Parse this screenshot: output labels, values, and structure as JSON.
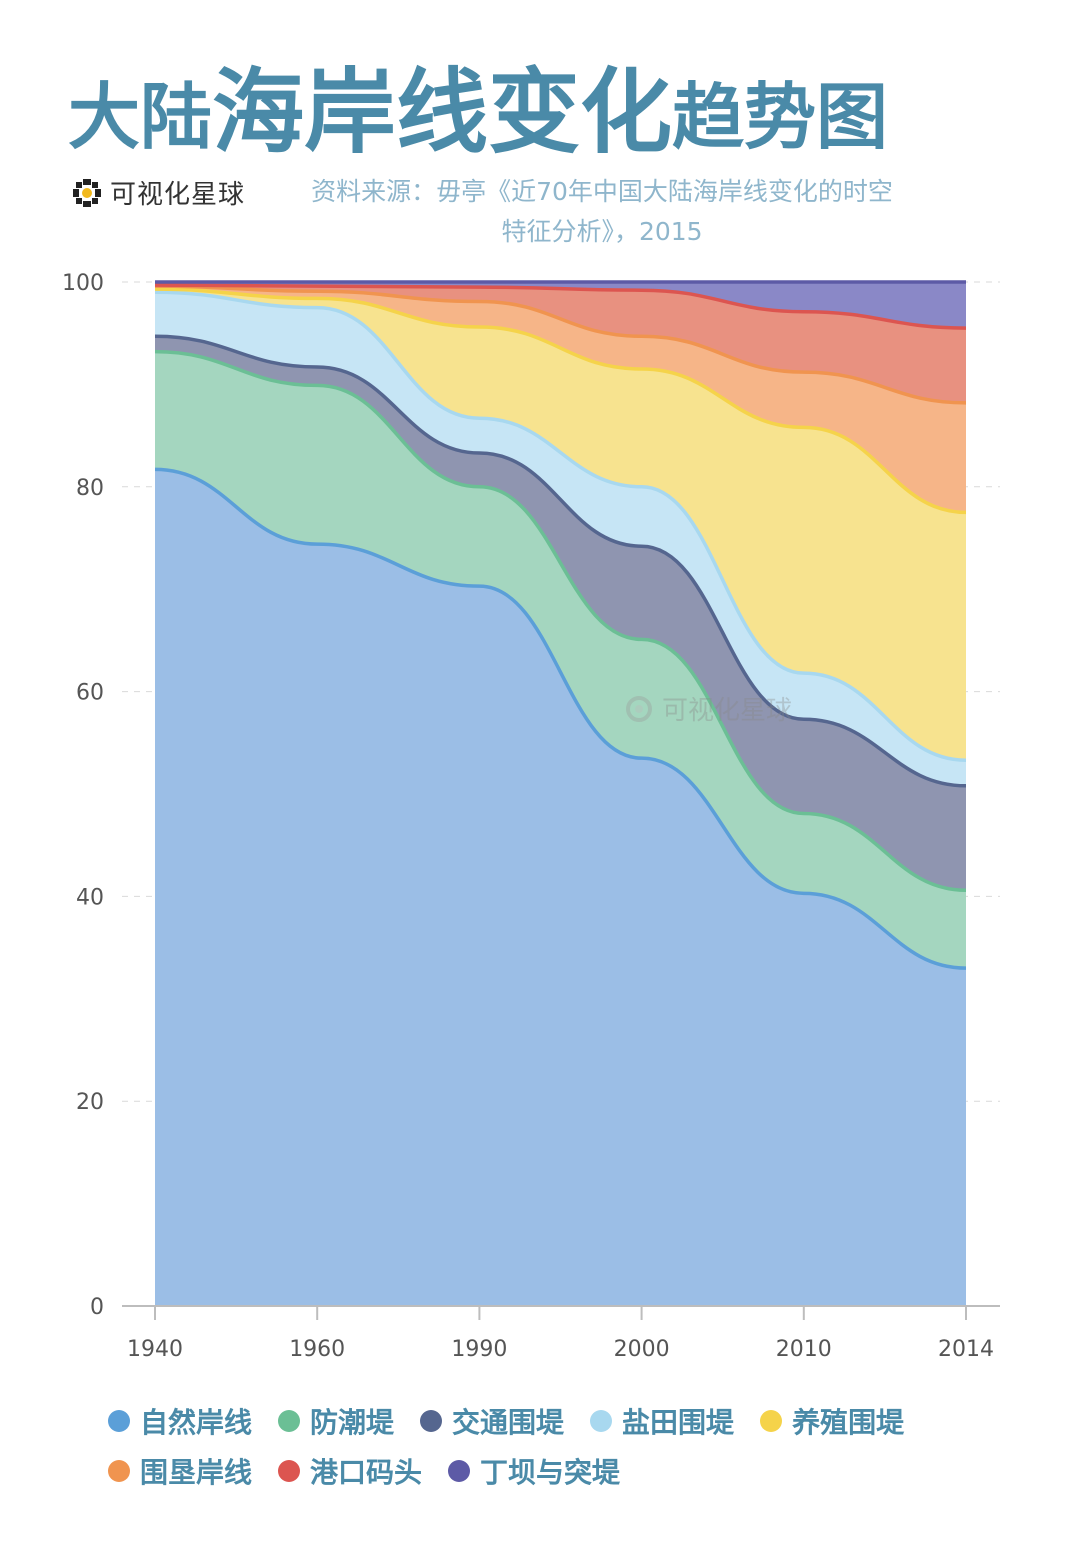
{
  "title": {
    "part1": "大陆",
    "part2": "海岸线变化",
    "part3": "趋势图"
  },
  "brand": {
    "name": "可视化星球",
    "icon": "planet-logo-icon"
  },
  "source": {
    "line1": "资料来源：毋亭《近70年中国大陆海岸线变化的时空",
    "line2": "特征分析》，2015"
  },
  "watermark": {
    "text": "可视化星球"
  },
  "chart_data": {
    "type": "area",
    "stacked": true,
    "categories": [
      "1940",
      "1960",
      "1990",
      "2000",
      "2010",
      "2014"
    ],
    "y_ticks": [
      "0",
      "20",
      "40",
      "60",
      "80",
      "100"
    ],
    "ylim": [
      0,
      100
    ],
    "grid": "horizontal dashed",
    "series": [
      {
        "name": "自然岸线",
        "color": "#9bbee6",
        "line": "#5b9fd8",
        "values": [
          81.7,
          74.4,
          70.3,
          53.5,
          40.3,
          33.0
        ]
      },
      {
        "name": "防潮堤",
        "color": "#a4d6bf",
        "line": "#6bbf95",
        "values": [
          11.5,
          15.5,
          9.7,
          11.6,
          7.8,
          7.6
        ]
      },
      {
        "name": "交通围堤",
        "color": "#8f95b0",
        "line": "#55668f",
        "values": [
          1.5,
          1.8,
          3.3,
          9.1,
          9.2,
          10.2
        ]
      },
      {
        "name": "盐田围堤",
        "color": "#c6e5f5",
        "line": "#a8d8ef",
        "values": [
          4.3,
          5.8,
          3.4,
          5.8,
          4.5,
          2.5
        ]
      },
      {
        "name": "养殖围堤",
        "color": "#f7e38f",
        "line": "#f5d34a",
        "values": [
          0.3,
          0.9,
          8.9,
          11.5,
          24.0,
          24.2
        ]
      },
      {
        "name": "围垦岸线",
        "color": "#f6b588",
        "line": "#f0944f",
        "values": [
          0.3,
          0.7,
          2.5,
          3.2,
          5.4,
          10.7
        ]
      },
      {
        "name": "港口码头",
        "color": "#e89180",
        "line": "#dc5550",
        "values": [
          0.1,
          0.5,
          1.4,
          4.5,
          5.9,
          7.3
        ]
      },
      {
        "name": "丁坝与突堤",
        "color": "#8a88c7",
        "line": "#5d5aa6",
        "values": [
          0.3,
          0.4,
          0.5,
          0.8,
          2.9,
          4.5
        ]
      }
    ],
    "legend": [
      {
        "label": "自然岸线",
        "color": "#5b9fd8"
      },
      {
        "label": "防潮堤",
        "color": "#6bbf95"
      },
      {
        "label": "交通围堤",
        "color": "#55668f"
      },
      {
        "label": "盐田围堤",
        "color": "#a8d8ef"
      },
      {
        "label": "养殖围堤",
        "color": "#f5d34a"
      },
      {
        "label": "围垦岸线",
        "color": "#f0944f"
      },
      {
        "label": "港口码头",
        "color": "#dc5550"
      },
      {
        "label": "丁坝与突堤",
        "color": "#5d5aa6"
      }
    ]
  }
}
